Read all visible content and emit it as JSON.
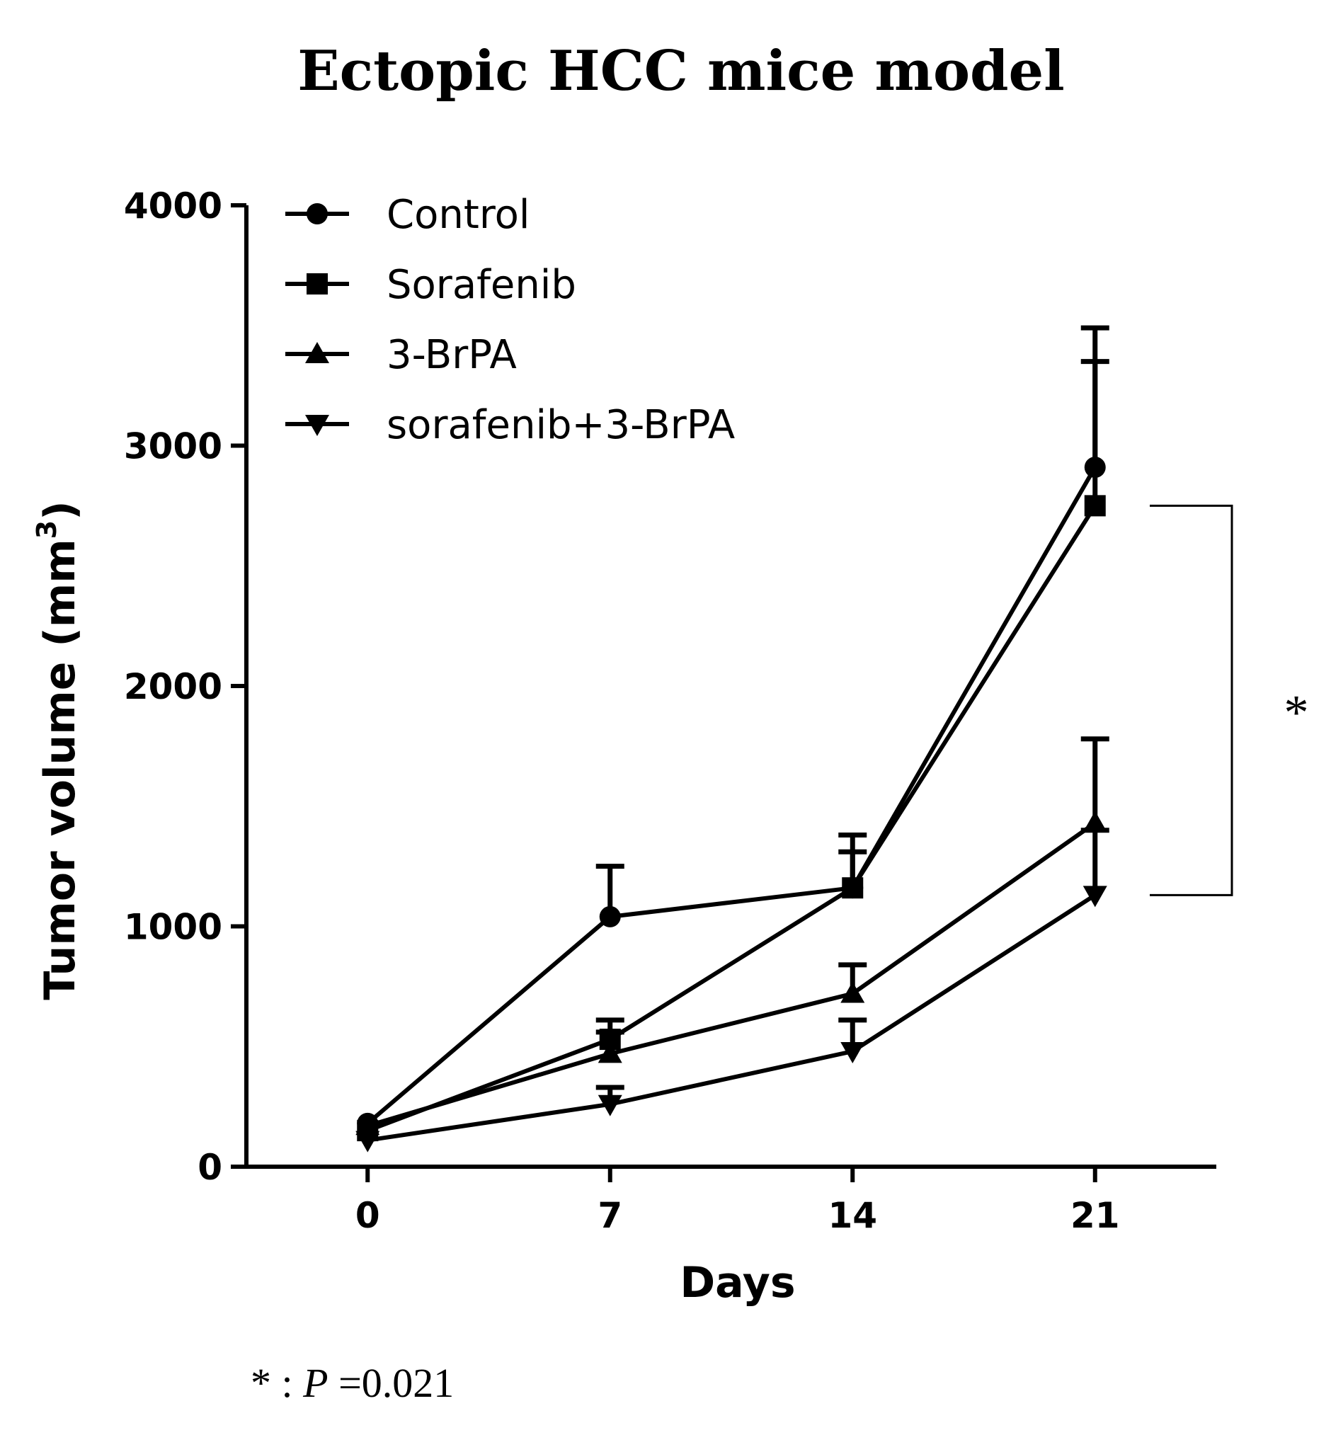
{
  "chart_data": {
    "type": "line",
    "title": "Ectopic HCC mice model",
    "xlabel": "Days",
    "ylabel": "Tumor volume (mm",
    "ylabel_sup": "3",
    "ylabel_close": ")",
    "x": [
      0,
      7,
      14,
      21
    ],
    "x_tick_labels": [
      "0",
      "7",
      "14",
      "21"
    ],
    "y_ticks": [
      0,
      1000,
      2000,
      3000,
      4000
    ],
    "y_tick_labels": [
      "0",
      "1000",
      "2000",
      "3000",
      "4000"
    ],
    "xlim": [
      -3.5,
      24.5
    ],
    "ylim": [
      0,
      4000
    ],
    "grid": false,
    "legend_position": "top-left",
    "series": [
      {
        "name": "Control",
        "marker": "circle",
        "values": [
          180,
          1040,
          1160,
          2910
        ],
        "error_upper": [
          null,
          1250,
          1380,
          3490
        ]
      },
      {
        "name": "Sorafenib",
        "marker": "square",
        "values": [
          150,
          530,
          1160,
          2750
        ],
        "error_upper": [
          null,
          610,
          1310,
          3350
        ]
      },
      {
        "name": "3-BrPA",
        "marker": "triangle-up",
        "values": [
          170,
          470,
          720,
          1430
        ],
        "error_upper": [
          null,
          560,
          840,
          1780
        ]
      },
      {
        "name": "sorafenib+3-BrPA",
        "marker": "triangle-down",
        "values": [
          110,
          260,
          480,
          1130
        ],
        "error_upper": [
          null,
          330,
          610,
          1400
        ]
      }
    ],
    "significance": {
      "symbol": "*",
      "from_value": 2750,
      "to_value": 1130
    },
    "footnote": {
      "star": "*",
      "colon": " : ",
      "p": "P",
      "rest": " =0.021"
    }
  },
  "colors": {
    "ink": "#000000",
    "background": "#ffffff"
  }
}
